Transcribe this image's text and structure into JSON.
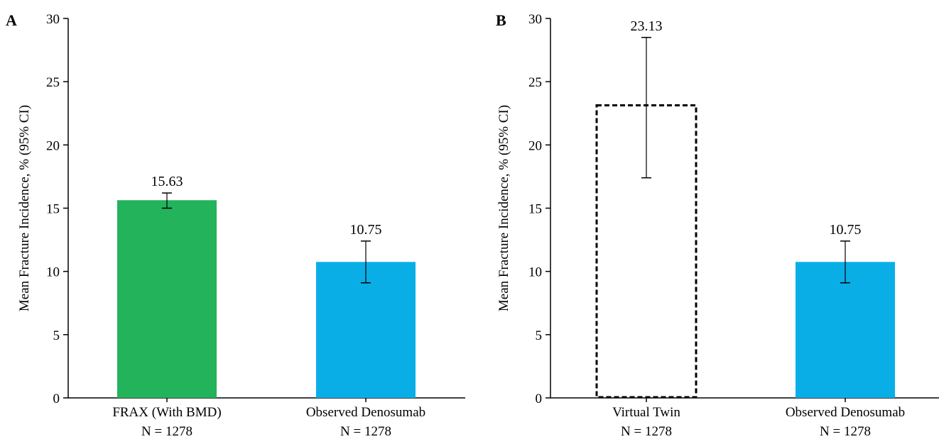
{
  "chart_data": [
    {
      "type": "bar",
      "panel_label": "A",
      "ylabel": "Mean Fracture Incidence, % (95% CI)",
      "ylim": [
        0,
        30
      ],
      "yticks": [
        0,
        5,
        10,
        15,
        20,
        25,
        30
      ],
      "categories": [
        "FRAX (With BMD)",
        "Observed Denosumab"
      ],
      "n_labels": [
        "N = 1278",
        "N = 1278"
      ],
      "values": [
        15.63,
        10.75
      ],
      "value_labels": [
        "15.63",
        "10.75"
      ],
      "ci_lower": [
        15.0,
        9.1
      ],
      "ci_upper": [
        16.2,
        12.4
      ],
      "colors": [
        "#22b35b",
        "#0aaee6"
      ],
      "styles": [
        "solid",
        "solid"
      ],
      "grid": false
    },
    {
      "type": "bar",
      "panel_label": "B",
      "ylabel": "Mean Fracture Incidence, % (95% CI)",
      "ylim": [
        0,
        30
      ],
      "yticks": [
        0,
        5,
        10,
        15,
        20,
        25,
        30
      ],
      "categories": [
        "Virtual Twin",
        "Observed Denosumab"
      ],
      "n_labels": [
        "N = 1278",
        "N = 1278"
      ],
      "values": [
        23.13,
        10.75
      ],
      "value_labels": [
        "23.13",
        "10.75"
      ],
      "ci_lower": [
        17.4,
        9.1
      ],
      "ci_upper": [
        28.5,
        12.4
      ],
      "colors": [
        "#ffffff",
        "#0aaee6"
      ],
      "styles": [
        "dashed",
        "solid"
      ],
      "grid": false
    }
  ]
}
